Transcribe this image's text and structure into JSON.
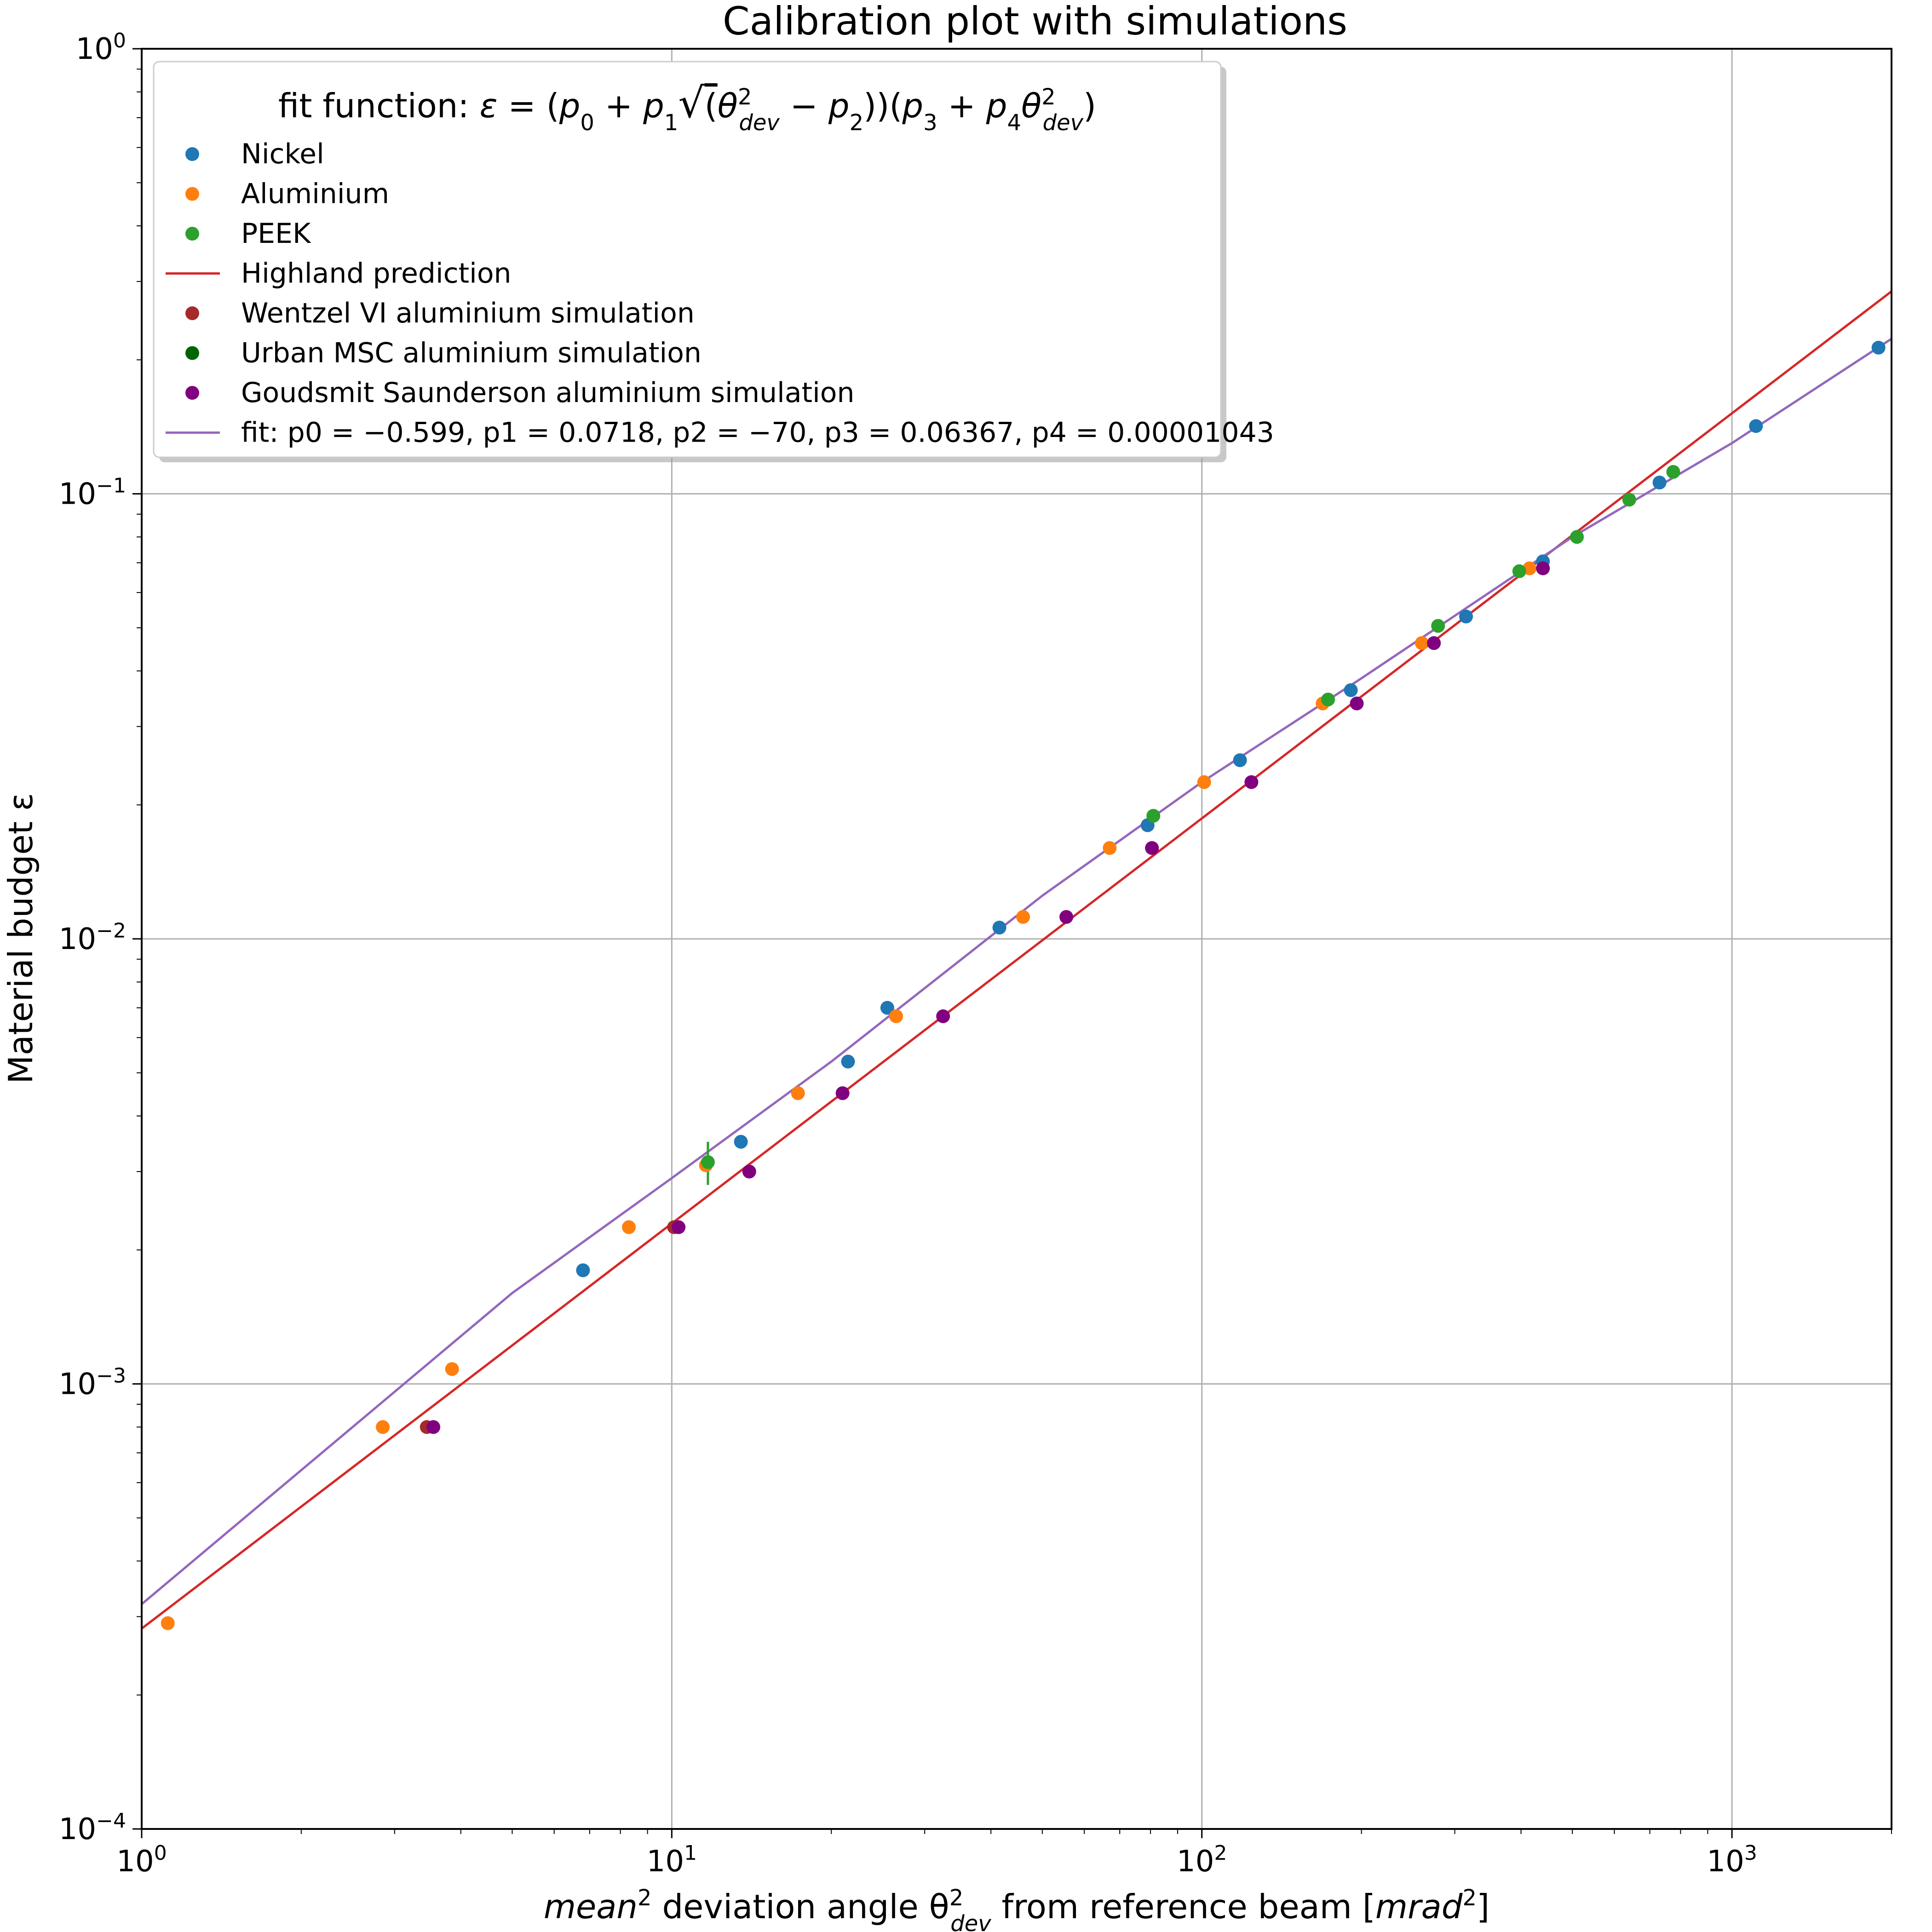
{
  "chart_data": {
    "type": "scatter",
    "title": "Calibration plot with simulations",
    "xlabel": {
      "pre": "mean",
      "sup1": "2",
      "mid": " deviation angle θ",
      "sup2": "2",
      "sub2": "dev",
      "post": " from reference beam [",
      "unit": "mrad",
      "sup3": "2",
      "end": "]"
    },
    "ylabel": "Material budget ε",
    "xscale": "log",
    "yscale": "log",
    "xlim": [
      1,
      2000
    ],
    "ylim": [
      0.0001,
      1
    ],
    "grid": true,
    "legend_position": "upper-left",
    "x_ticks": [
      {
        "value": 1,
        "base": "10",
        "exp": "0"
      },
      {
        "value": 10,
        "base": "10",
        "exp": "1"
      },
      {
        "value": 100,
        "base": "10",
        "exp": "2"
      },
      {
        "value": 1000,
        "base": "10",
        "exp": "3"
      }
    ],
    "y_ticks": [
      {
        "value": 0.0001,
        "base": "10",
        "exp": "−4"
      },
      {
        "value": 0.001,
        "base": "10",
        "exp": "−3"
      },
      {
        "value": 0.01,
        "base": "10",
        "exp": "−2"
      },
      {
        "value": 0.1,
        "base": "10",
        "exp": "−1"
      },
      {
        "value": 1,
        "base": "10",
        "exp": "0"
      }
    ],
    "legend_title": "fit function: ε = (p0 + p1 √(θ²dev − p2)) (p3 + p4 θ²dev)",
    "series": [
      {
        "name": "Nickel",
        "kind": "points",
        "color": "#1f77b4",
        "points": [
          [
            6.8,
            0.0018
          ],
          [
            13.5,
            0.0035
          ],
          [
            21.5,
            0.0053
          ],
          [
            25.5,
            0.007
          ],
          [
            41.5,
            0.0106
          ],
          [
            79,
            0.018
          ],
          [
            118,
            0.0252
          ],
          [
            191,
            0.0362
          ],
          [
            315,
            0.053
          ],
          [
            440,
            0.0705
          ],
          [
            730,
            0.106
          ],
          [
            1110,
            0.142
          ],
          [
            1890,
            0.213
          ]
        ]
      },
      {
        "name": "Aluminium",
        "kind": "points",
        "color": "#ff7f0e",
        "points": [
          [
            1.12,
            0.00029
          ],
          [
            2.85,
            0.0008
          ],
          [
            3.85,
            0.00108
          ],
          [
            8.3,
            0.00225
          ],
          [
            11.6,
            0.0031
          ],
          [
            17.3,
            0.0045
          ],
          [
            26.5,
            0.0067
          ],
          [
            46,
            0.0112
          ],
          [
            67,
            0.016
          ],
          [
            101,
            0.0225
          ],
          [
            169,
            0.0338
          ],
          [
            260,
            0.0462
          ],
          [
            415,
            0.068
          ]
        ]
      },
      {
        "name": "PEEK",
        "kind": "points",
        "color": "#2ca02c",
        "points": [
          [
            11.7,
            0.00315
          ],
          [
            81,
            0.0189
          ],
          [
            173,
            0.0345
          ],
          [
            279,
            0.0505
          ],
          [
            397,
            0.067
          ],
          [
            510,
            0.08
          ],
          [
            640,
            0.097
          ],
          [
            775,
            0.112
          ]
        ]
      },
      {
        "name": "Highland prediction",
        "kind": "line",
        "color": "#d62728",
        "points": [
          [
            1,
            0.000282
          ],
          [
            2000,
            0.285
          ]
        ]
      },
      {
        "name": "Wentzel VI aluminium simulation",
        "kind": "points",
        "color": "#a52a2a",
        "points": [
          [
            3.45,
            0.0008
          ],
          [
            10.1,
            0.00225
          ]
        ]
      },
      {
        "name": "Urban MSC aluminium simulation",
        "kind": "points",
        "color": "#006400",
        "points": []
      },
      {
        "name": "Goudsmit Saunderson aluminium simulation",
        "kind": "points",
        "color": "#800080",
        "points": [
          [
            3.55,
            0.0008
          ],
          [
            10.3,
            0.00225
          ],
          [
            14,
            0.003
          ],
          [
            21,
            0.0045
          ],
          [
            32.5,
            0.0067
          ],
          [
            55.5,
            0.0112
          ],
          [
            80.5,
            0.016
          ],
          [
            124,
            0.0225
          ],
          [
            196,
            0.0338
          ],
          [
            274,
            0.0462
          ],
          [
            440,
            0.068
          ]
        ]
      },
      {
        "name": "fit: p0 = −0.599, p1 = 0.0718, p2 = −70, p3 = 0.06367, p4 = 0.00001043",
        "kind": "line",
        "color": "#9467bd",
        "points": [
          [
            1,
            0.00032
          ],
          [
            2,
            0.00064
          ],
          [
            5,
            0.0016
          ],
          [
            10,
            0.0029
          ],
          [
            20,
            0.0053
          ],
          [
            50,
            0.0125
          ],
          [
            100,
            0.0225
          ],
          [
            200,
            0.0385
          ],
          [
            500,
            0.08
          ],
          [
            1000,
            0.13
          ],
          [
            2000,
            0.223
          ]
        ]
      }
    ],
    "error_bars": [
      {
        "series": "PEEK",
        "x": 11.7,
        "y_low": 0.0028,
        "y_high": 0.0035
      }
    ]
  }
}
